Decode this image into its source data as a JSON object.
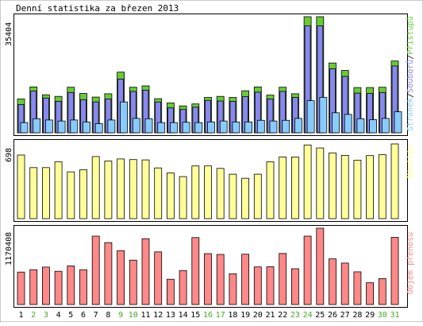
{
  "title": "Denní statistika za březen 2013",
  "colors": {
    "access": "#66cc33",
    "files": "#8888ee",
    "pages": "#88ccff",
    "visits": "#ffff99",
    "volume": "#ff8888",
    "weekend_label": "#44aa22",
    "weekday_label": "#000000"
  },
  "chart_data": [
    {
      "type": "bar",
      "panel": "top",
      "ymax_label": "35404",
      "legend": {
        "pages": "Stránek",
        "files": "Souborů",
        "access": "Přístupů",
        "separator": "/"
      },
      "categories": [
        "1",
        "2",
        "3",
        "4",
        "5",
        "6",
        "7",
        "8",
        "9",
        "10",
        "11",
        "12",
        "13",
        "14",
        "15",
        "16",
        "17",
        "18",
        "19",
        "20",
        "21",
        "22",
        "23",
        "24",
        "25",
        "26",
        "27",
        "28",
        "29",
        "30",
        "31"
      ],
      "series": [
        {
          "name": "Přístupů",
          "values": [
            10300,
            14000,
            11600,
            11100,
            13900,
            12000,
            10900,
            11900,
            18500,
            13900,
            14300,
            10400,
            9100,
            8200,
            8800,
            10800,
            11100,
            10800,
            12800,
            14000,
            11500,
            13900,
            11900,
            35404,
            35404,
            21300,
            19000,
            13800,
            13800,
            13900,
            21900
          ]
        },
        {
          "name": "Souborů",
          "values": [
            8600,
            12700,
            10600,
            9600,
            12300,
            10100,
            9400,
            10300,
            16400,
            12600,
            13000,
            9400,
            7600,
            7100,
            7800,
            9900,
            9700,
            9600,
            11000,
            12400,
            10300,
            12600,
            10800,
            32600,
            32600,
            19500,
            17200,
            12100,
            12000,
            12300,
            20400
          ]
        },
        {
          "name": "Stránek",
          "values": [
            3100,
            4300,
            3900,
            3600,
            3900,
            3300,
            2800,
            3900,
            9400,
            4400,
            4300,
            3100,
            3100,
            3200,
            3100,
            3300,
            3600,
            3300,
            3300,
            3800,
            3600,
            3800,
            4400,
            9800,
            10800,
            6100,
            5600,
            4300,
            4000,
            4400,
            6400
          ]
        }
      ],
      "ylim": [
        0,
        35404
      ]
    },
    {
      "type": "bar",
      "panel": "middle",
      "ymax_label": "698",
      "legend": "Návštěv",
      "categories": [
        "1",
        "2",
        "3",
        "4",
        "5",
        "6",
        "7",
        "8",
        "9",
        "10",
        "11",
        "12",
        "13",
        "14",
        "15",
        "16",
        "17",
        "18",
        "19",
        "20",
        "21",
        "22",
        "23",
        "24",
        "25",
        "26",
        "27",
        "28",
        "29",
        "30",
        "31"
      ],
      "series": [
        {
          "name": "Návštěv",
          "values": [
            594,
            477,
            477,
            530,
            437,
            457,
            580,
            538,
            558,
            552,
            549,
            474,
            427,
            393,
            492,
            492,
            469,
            415,
            377,
            415,
            531,
            576,
            576,
            688,
            660,
            614,
            591,
            546,
            589,
            597,
            698
          ]
        }
      ],
      "ylim": [
        0,
        698
      ]
    },
    {
      "type": "bar",
      "panel": "bottom",
      "ymax_label": "1170408",
      "legend": "Objem přenosu",
      "categories": [
        "1",
        "2",
        "3",
        "4",
        "5",
        "6",
        "7",
        "8",
        "9",
        "10",
        "11",
        "12",
        "13",
        "14",
        "15",
        "16",
        "17",
        "18",
        "19",
        "20",
        "21",
        "22",
        "23",
        "24",
        "25",
        "26",
        "27",
        "28",
        "29",
        "30",
        "31"
      ],
      "series": [
        {
          "name": "Objem přenosu",
          "values": [
            497000,
            534000,
            574000,
            510000,
            592000,
            534000,
            1049000,
            950000,
            827000,
            680000,
            1009000,
            807000,
            388000,
            520000,
            1027000,
            780000,
            768000,
            472000,
            772000,
            577000,
            579000,
            783000,
            549000,
            1049000,
            1170408,
            700000,
            635000,
            501000,
            334000,
            398000,
            1030000
          ]
        }
      ],
      "ylim": [
        0,
        1170408
      ]
    }
  ],
  "xaxis": {
    "labels": [
      "1",
      "2",
      "3",
      "4",
      "5",
      "6",
      "7",
      "8",
      "9",
      "10",
      "11",
      "12",
      "13",
      "14",
      "15",
      "16",
      "17",
      "18",
      "19",
      "20",
      "21",
      "22",
      "23",
      "24",
      "25",
      "26",
      "27",
      "28",
      "29",
      "30",
      "31"
    ],
    "weekend": [
      false,
      true,
      true,
      false,
      false,
      false,
      false,
      false,
      true,
      true,
      false,
      false,
      false,
      false,
      false,
      true,
      true,
      false,
      false,
      false,
      false,
      false,
      true,
      true,
      false,
      false,
      false,
      false,
      false,
      true,
      true
    ]
  }
}
